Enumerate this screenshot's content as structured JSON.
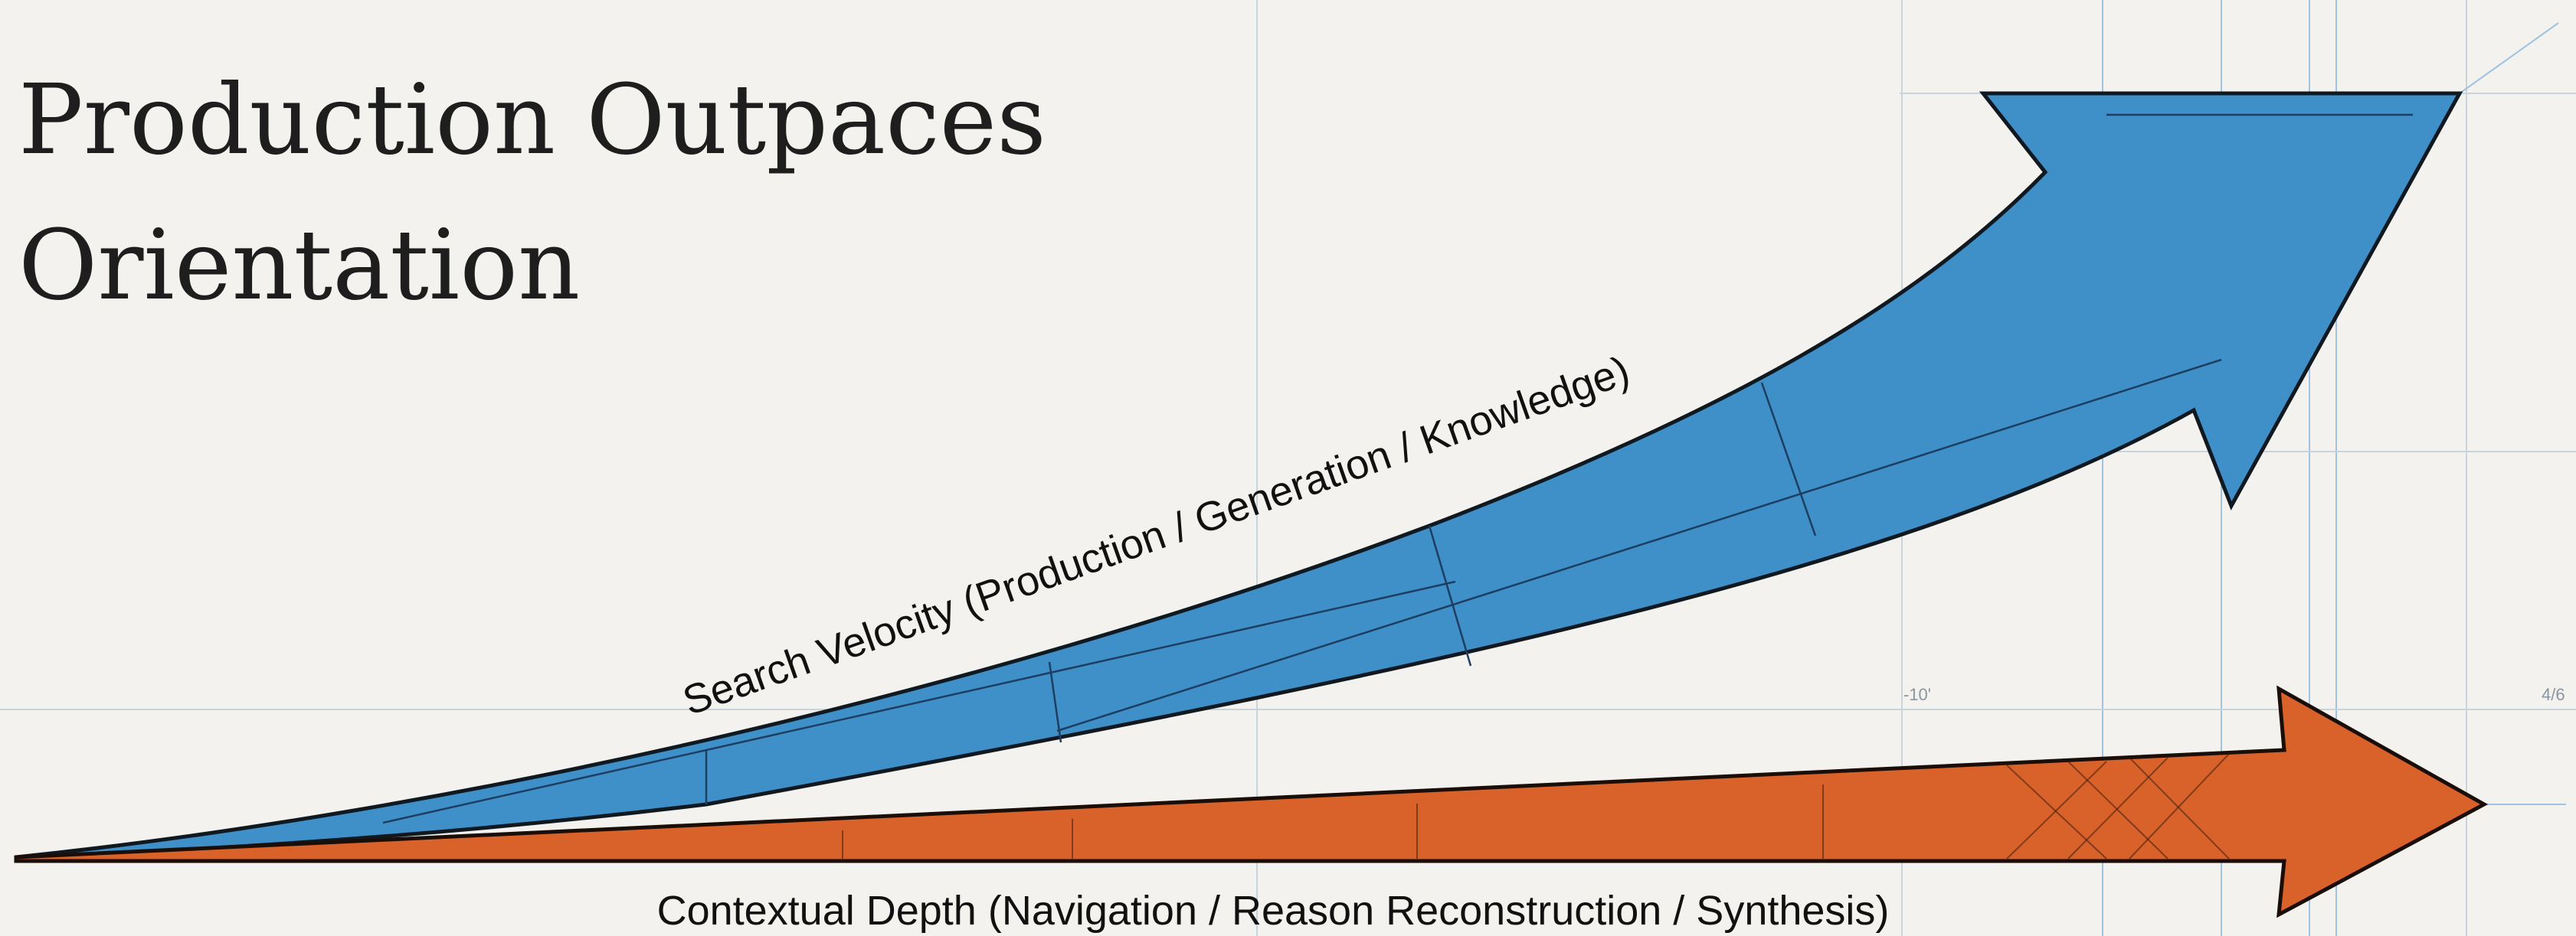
{
  "title_lines": [
    "Production Outpaces",
    "Orientation"
  ],
  "arrows": [
    {
      "label": "Search Velocity (Production / Generation / Knowledge)"
    },
    {
      "label": "Contextual Depth (Navigation / Reason Reconstruction / Synthesis)"
    }
  ],
  "annotations": [
    "-10'",
    "4/6"
  ]
}
